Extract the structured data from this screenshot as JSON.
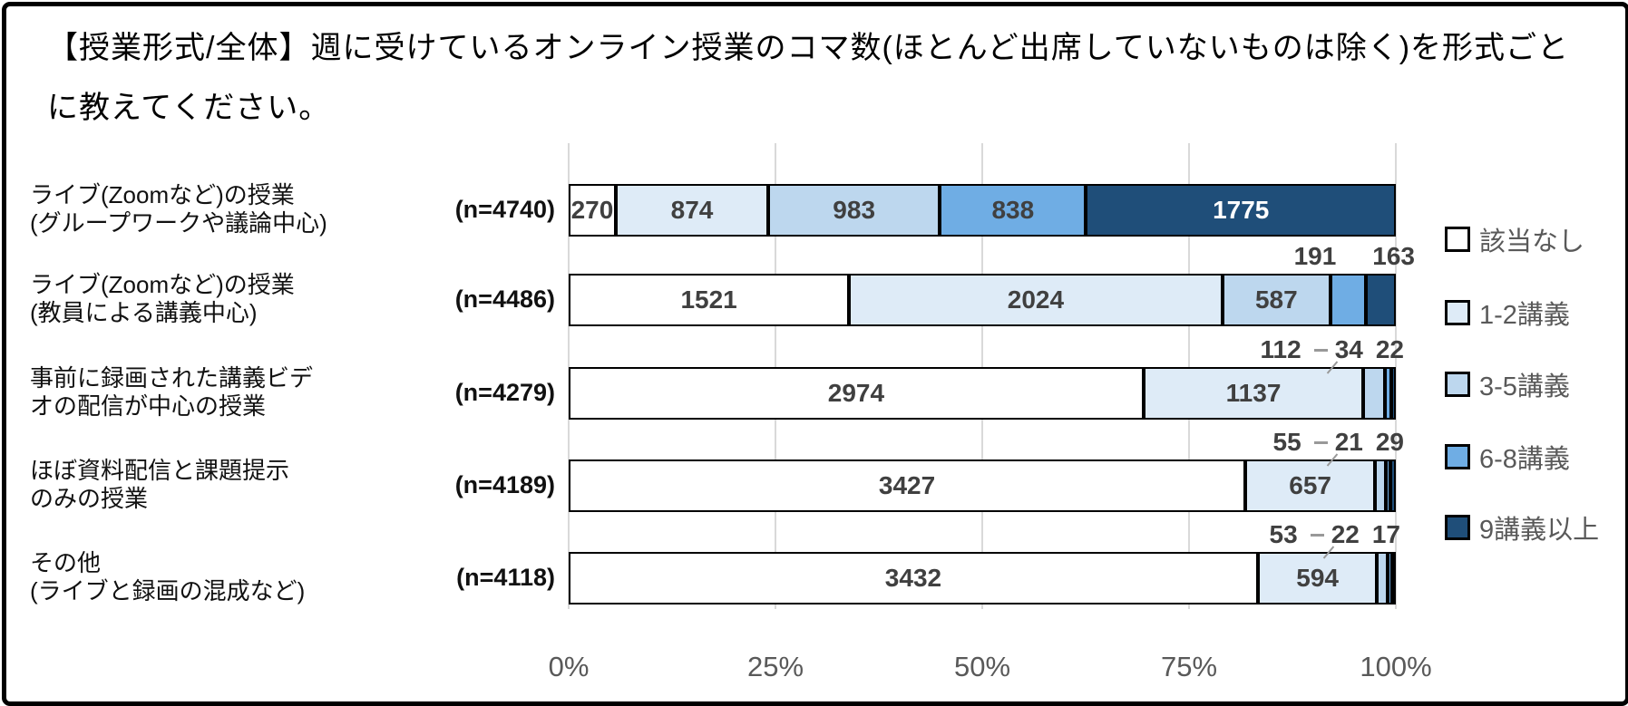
{
  "title": "【授業形式/全体】週に受けているオンライン授業のコマ数(ほとんど出席していないものは除く)を形式ごとに教えてください。",
  "chart_data": {
    "type": "bar",
    "orientation": "horizontal-stacked-100-percent",
    "title": "【授業形式/全体】週に受けているオンライン授業のコマ数(ほとんど出席していないものは除く)を形式ごとに教えてください。",
    "legend_position": "right",
    "grid": true,
    "gridline_color": "#d9d9d9",
    "x_ticks": [
      "0%",
      "25%",
      "50%",
      "75%",
      "100%"
    ],
    "xlim": [
      0,
      100
    ],
    "legend": [
      {
        "label": "該当なし",
        "color": "#ffffff"
      },
      {
        "label": "1-2講義",
        "color": "#deebf7"
      },
      {
        "label": "3-5講義",
        "color": "#bdd7ee"
      },
      {
        "label": "6-8講義",
        "color": "#6fade4"
      },
      {
        "label": "9講義以上",
        "color": "#1f4e79"
      }
    ],
    "value_label_color": "#404040",
    "inverse_label_color": "#ffffff",
    "rows": [
      {
        "label_lines": [
          "ライブ(Zoomなど)の授業",
          "(グループワークや議論中心)"
        ],
        "n_label": "(n=4740)",
        "n": 4740,
        "values": [
          270,
          874,
          983,
          838,
          1775
        ],
        "above_count": 0
      },
      {
        "label_lines": [
          "ライブ(Zoomなど)の授業",
          "(教員による講義中心)"
        ],
        "n_label": "(n=4486)",
        "n": 4486,
        "values": [
          1521,
          2024,
          587,
          191,
          163
        ],
        "above_count": 2
      },
      {
        "label_lines": [
          "事前に録画された講義ビデ",
          "オの配信が中心の授業"
        ],
        "n_label": "(n=4279)",
        "n": 4279,
        "values": [
          2974,
          1137,
          112,
          34,
          22
        ],
        "above_count": 3
      },
      {
        "label_lines": [
          "ほぼ資料配信と課題提示",
          "のみの授業"
        ],
        "n_label": "(n=4189)",
        "n": 4189,
        "values": [
          3427,
          657,
          55,
          21,
          29
        ],
        "above_count": 3
      },
      {
        "label_lines": [
          "その他",
          "(ライブと録画の混成など)"
        ],
        "n_label": "(n=4118)",
        "n": 4118,
        "values": [
          3432,
          594,
          53,
          22,
          17
        ],
        "above_count": 3
      }
    ]
  }
}
